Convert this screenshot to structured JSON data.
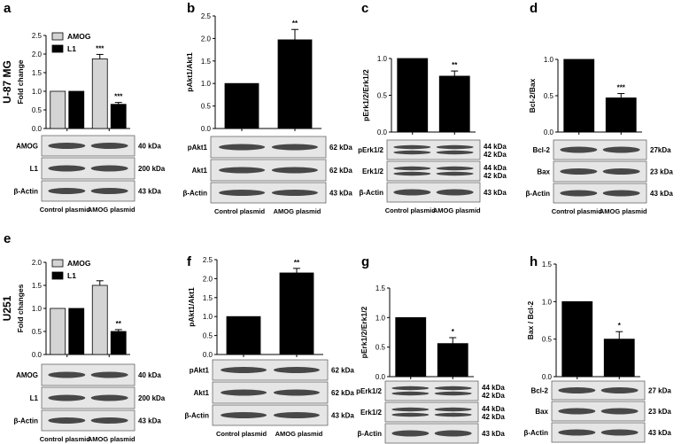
{
  "chart_data": [
    {
      "id": "a",
      "letter": "a",
      "row_label": "U-87 MG",
      "type": "bar",
      "ylabel": "Fold change",
      "ylim": [
        0,
        2.5
      ],
      "yticks": [
        "0.0",
        "0.5",
        "1.0",
        "1.5",
        "2.0",
        "2.5"
      ],
      "categories": [
        "Control plasmid",
        "AMOG plasmid"
      ],
      "legend": [
        "AMOG",
        "L1"
      ],
      "series": [
        {
          "name": "AMOG",
          "values": [
            1.0,
            1.87
          ],
          "errors": [
            0,
            0.12
          ],
          "color": "#d4d4d4"
        },
        {
          "name": "L1",
          "values": [
            1.0,
            0.65
          ],
          "errors": [
            0,
            0.05
          ],
          "color": "#000000"
        }
      ],
      "significance": [
        "",
        "***",
        "***"
      ],
      "blots": [
        {
          "label": "AMOG",
          "kda": [
            "40 kDa"
          ]
        },
        {
          "label": "L1",
          "kda": [
            "200 kDa"
          ]
        },
        {
          "label": "β-Actin",
          "kda": [
            "43 kDa"
          ]
        }
      ]
    },
    {
      "id": "b",
      "letter": "b",
      "type": "bar",
      "ylabel": "pAkt1/Akt1",
      "ylim": [
        0,
        2.5
      ],
      "yticks": [
        "0.0",
        "0.5",
        "1.0",
        "1.5",
        "2.0",
        "2.5"
      ],
      "categories": [
        "Control plasmid",
        "AMOG plasmid"
      ],
      "series": [
        {
          "values": [
            1.0,
            1.97
          ],
          "errors": [
            0,
            0.23
          ],
          "color": "#000000"
        }
      ],
      "significance": [
        "",
        "**"
      ],
      "blots": [
        {
          "label": "pAkt1",
          "kda": [
            "62 kDa"
          ]
        },
        {
          "label": "Akt1",
          "kda": [
            "62 kDa"
          ]
        },
        {
          "label": "β-Actin",
          "kda": [
            "43 kDa"
          ]
        }
      ]
    },
    {
      "id": "c",
      "letter": "c",
      "type": "bar",
      "ylabel": "pErk1/2/Erk1/2",
      "ylim": [
        0,
        1.0
      ],
      "yticks": [
        "0.0",
        "0.5",
        "1.0"
      ],
      "categories": [
        "Control plasmid",
        "AMOG plasmid"
      ],
      "series": [
        {
          "values": [
            1.0,
            0.76
          ],
          "errors": [
            0,
            0.07
          ],
          "color": "#000000"
        }
      ],
      "significance": [
        "",
        "**"
      ],
      "blots": [
        {
          "label": "pErk1/2",
          "kda": [
            "44 kDa",
            "42 kDa"
          ]
        },
        {
          "label": "Erk1/2",
          "kda": [
            "44 kDa",
            "42 kDa"
          ]
        },
        {
          "label": "β-Actin",
          "kda": [
            "43 kDa"
          ]
        }
      ]
    },
    {
      "id": "d",
      "letter": "d",
      "type": "bar",
      "ylabel": "Bcl-2/Bax",
      "ylim": [
        0,
        1.0
      ],
      "yticks": [
        "0.0",
        "0.5",
        "1.0"
      ],
      "categories": [
        "Control plasmid",
        "AMOG plasmid"
      ],
      "series": [
        {
          "values": [
            1.0,
            0.47
          ],
          "errors": [
            0,
            0.06
          ],
          "color": "#000000"
        }
      ],
      "significance": [
        "",
        "***"
      ],
      "blots": [
        {
          "label": "Bcl-2",
          "kda": [
            "27kDa"
          ]
        },
        {
          "label": "Bax",
          "kda": [
            "23 kDa"
          ]
        },
        {
          "label": "β-Actin",
          "kda": [
            "43 kDa"
          ]
        }
      ]
    },
    {
      "id": "e",
      "letter": "e",
      "row_label": "U251",
      "type": "bar",
      "ylabel": "Fold changes",
      "ylim": [
        0,
        2.0
      ],
      "yticks": [
        "0.0",
        "0.5",
        "1.0",
        "1.5",
        "2.0"
      ],
      "categories": [
        "Control plasmid",
        "AMOG plasmid"
      ],
      "legend": [
        "AMOG",
        "L1"
      ],
      "series": [
        {
          "name": "AMOG",
          "values": [
            1.0,
            1.5
          ],
          "errors": [
            0,
            0.1
          ],
          "color": "#d4d4d4"
        },
        {
          "name": "L1",
          "values": [
            1.0,
            0.5
          ],
          "errors": [
            0,
            0.04
          ],
          "color": "#000000"
        }
      ],
      "significance": [
        "",
        "",
        "**"
      ],
      "blots": [
        {
          "label": "AMOG",
          "kda": [
            "40 kDa"
          ]
        },
        {
          "label": "L1",
          "kda": [
            "200 kDa"
          ]
        },
        {
          "label": "β-Actin",
          "kda": [
            "43 kDa"
          ]
        }
      ]
    },
    {
      "id": "f",
      "letter": "f",
      "type": "bar",
      "ylabel": "pAkt1/Akt1",
      "ylim": [
        0,
        2.5
      ],
      "yticks": [
        "0.0",
        "0.5",
        "1.0",
        "1.5",
        "2.0",
        "2.5"
      ],
      "categories": [
        "Control plasmid",
        "AMOG plasmid"
      ],
      "series": [
        {
          "values": [
            1.0,
            2.15
          ],
          "errors": [
            0,
            0.12
          ],
          "color": "#000000"
        }
      ],
      "significance": [
        "",
        "**"
      ],
      "blots": [
        {
          "label": "pAkt1",
          "kda": [
            "62 kDa"
          ]
        },
        {
          "label": "Akt1",
          "kda": [
            "62 kDa"
          ]
        },
        {
          "label": "β-Actin",
          "kda": [
            "43 kDa"
          ]
        }
      ]
    },
    {
      "id": "g",
      "letter": "g",
      "type": "bar",
      "ylabel": "pErk1/2/Erk1/2",
      "ylim": [
        0,
        1.5
      ],
      "yticks": [
        "0.0",
        "0.5",
        "1.0",
        "1.5"
      ],
      "categories": [
        "Control plasmid",
        "AMOG plasmid"
      ],
      "series": [
        {
          "values": [
            1.0,
            0.56
          ],
          "errors": [
            0,
            0.1
          ],
          "color": "#000000"
        }
      ],
      "significance": [
        "",
        "*"
      ],
      "blots": [
        {
          "label": "pErk1/2",
          "kda": [
            "44 kDa",
            "42 kDa"
          ]
        },
        {
          "label": "Erk1/2",
          "kda": [
            "44 kDa",
            "42 kDa"
          ]
        },
        {
          "label": "β-Actin",
          "kda": [
            "43 kDa"
          ]
        }
      ]
    },
    {
      "id": "h",
      "letter": "h",
      "type": "bar",
      "ylabel": "Bax / Bcl-2",
      "ylim": [
        0,
        1.5
      ],
      "yticks": [
        "0.0",
        "0.5",
        "1.0",
        "1.5"
      ],
      "categories": [
        "Control plasmid",
        "AMOG plasmid"
      ],
      "series": [
        {
          "values": [
            1.0,
            0.5
          ],
          "errors": [
            0,
            0.1
          ],
          "color": "#000000"
        }
      ],
      "significance": [
        "",
        "*"
      ],
      "blots": [
        {
          "label": "Bcl-2",
          "kda": [
            "27 kDa"
          ]
        },
        {
          "label": "Bax",
          "kda": [
            "23 kDa"
          ]
        },
        {
          "label": "β-Actin",
          "kda": [
            "43 kDa"
          ]
        }
      ]
    }
  ]
}
